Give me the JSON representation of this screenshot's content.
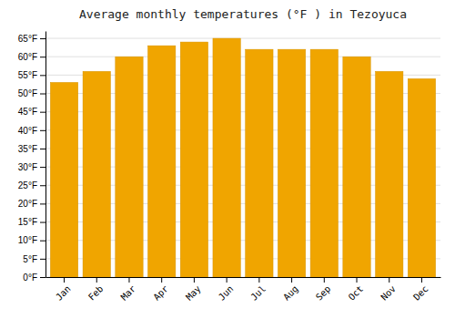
{
  "chart_data": {
    "type": "bar",
    "title": "Average monthly temperatures (°F ) in Tezoyuca",
    "categories": [
      "Jan",
      "Feb",
      "Mar",
      "Apr",
      "May",
      "Jun",
      "Jul",
      "Aug",
      "Sep",
      "Oct",
      "Nov",
      "Dec"
    ],
    "values": [
      53,
      56,
      60,
      63,
      64,
      65,
      62,
      62,
      62,
      60,
      56,
      54
    ],
    "color": "#F0A500",
    "ylim": [
      0,
      67
    ],
    "yticks": [
      {
        "value": 0,
        "label": "0°F"
      },
      {
        "value": 5,
        "label": "5°F"
      },
      {
        "value": 10,
        "label": "10°F"
      },
      {
        "value": 15,
        "label": "15°F"
      },
      {
        "value": 20,
        "label": "20°F"
      },
      {
        "value": 25,
        "label": "25°F"
      },
      {
        "value": 30,
        "label": "30°F"
      },
      {
        "value": 35,
        "label": "35°F"
      },
      {
        "value": 40,
        "label": "40°F"
      },
      {
        "value": 45,
        "label": "45°F"
      },
      {
        "value": 50,
        "label": "50°F"
      },
      {
        "value": 55,
        "label": "55°F"
      },
      {
        "value": 60,
        "label": "60°F"
      },
      {
        "value": 65,
        "label": "65°F"
      }
    ],
    "grid": true
  }
}
